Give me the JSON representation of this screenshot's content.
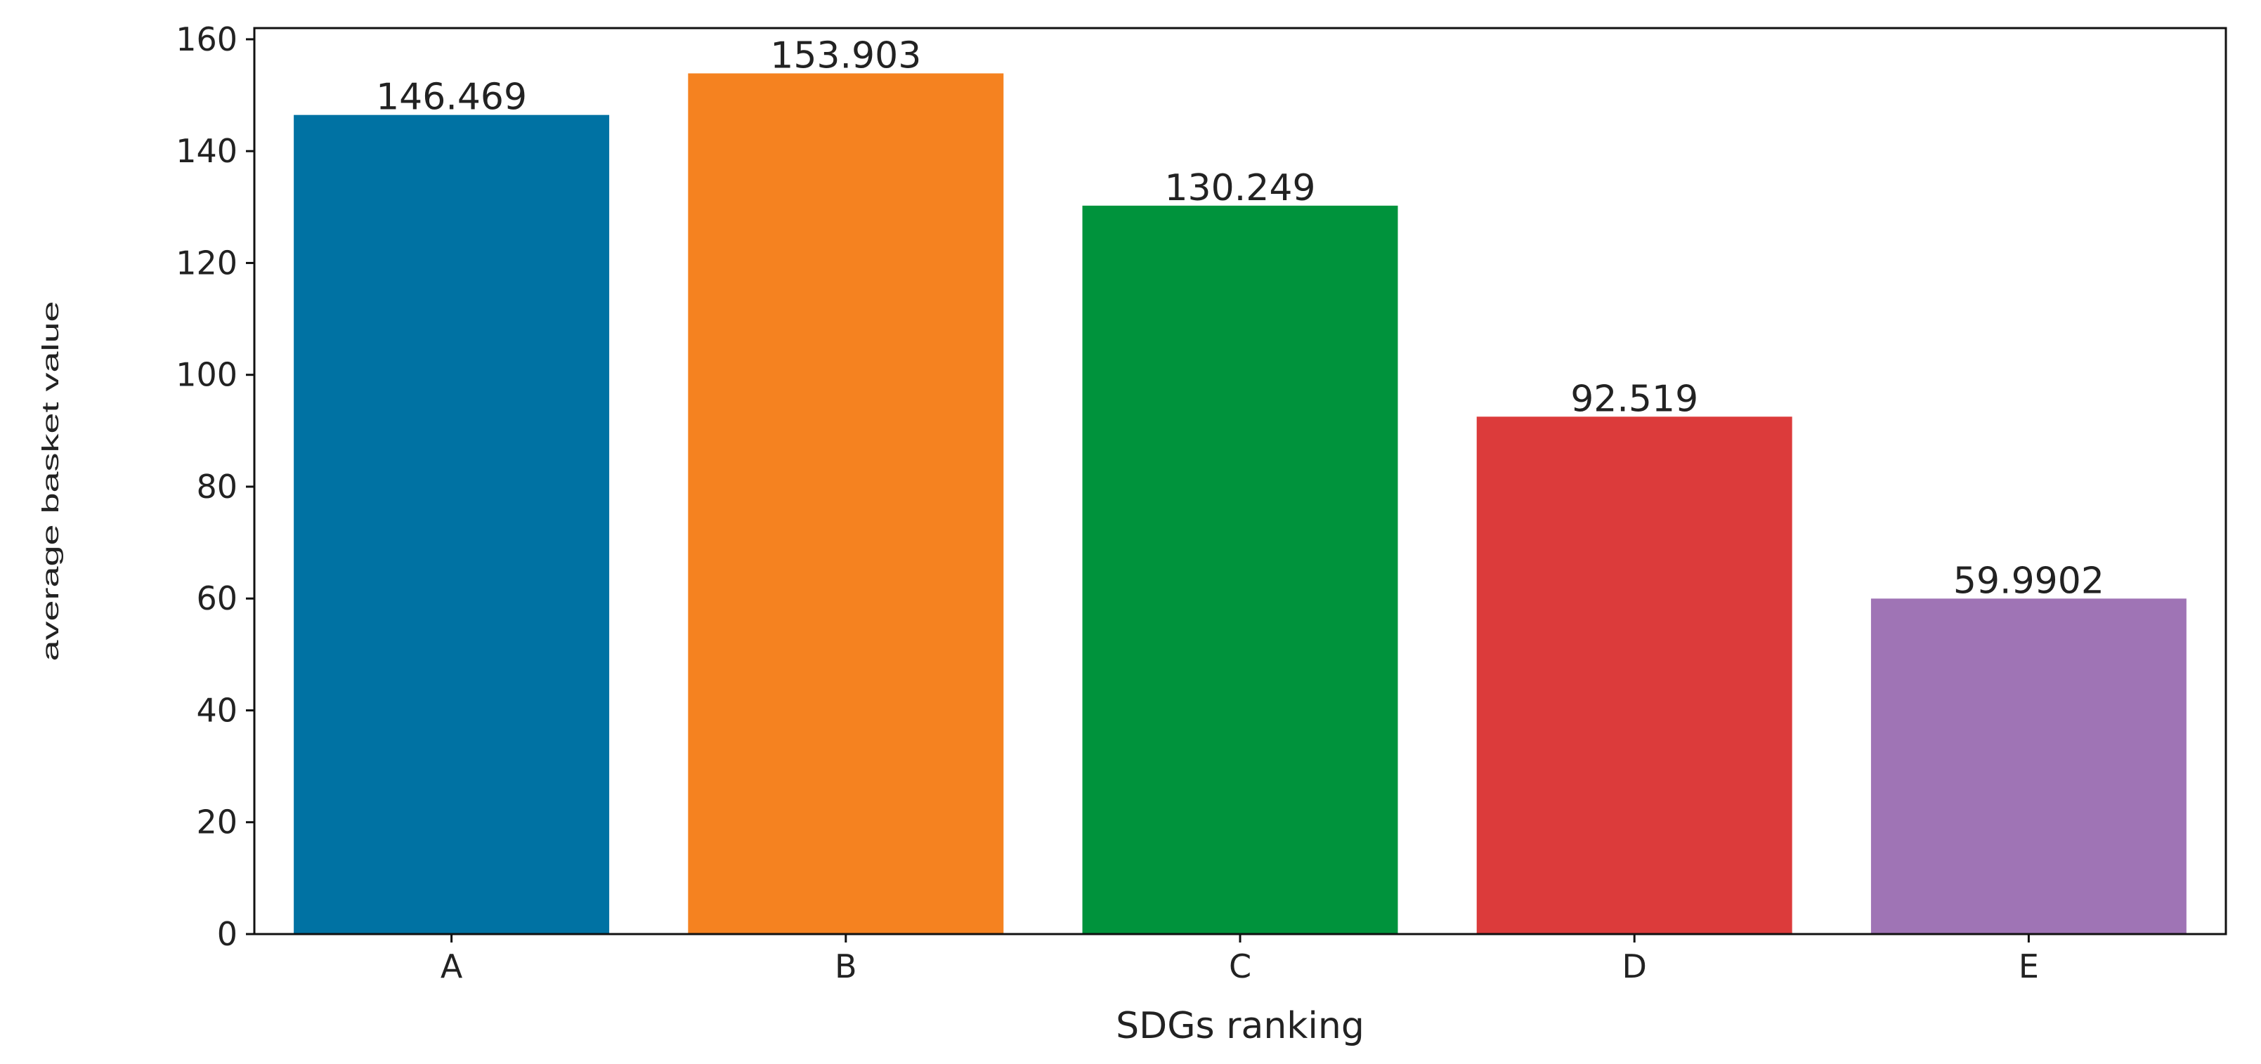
{
  "chart_data": {
    "type": "bar",
    "categories": [
      "A",
      "B",
      "C",
      "D",
      "E"
    ],
    "values": [
      146.469,
      153.903,
      130.249,
      92.519,
      59.9902
    ],
    "data_labels": [
      "146.469",
      "153.903",
      "130.249",
      "92.519",
      "59.9902"
    ],
    "colors": [
      "#0072a3",
      "#f58220",
      "#00933c",
      "#dc3b3b",
      "#9f74b5"
    ],
    "title": "",
    "xlabel": "SDGs ranking",
    "ylabel": "average basket value",
    "ylim": [
      0,
      162
    ],
    "yticks": [
      0,
      20,
      40,
      60,
      80,
      100,
      120,
      140,
      160
    ],
    "ytick_labels": [
      "0",
      "20",
      "40",
      "60",
      "80",
      "100",
      "120",
      "140",
      "160"
    ],
    "grid": false,
    "legend": "none"
  }
}
